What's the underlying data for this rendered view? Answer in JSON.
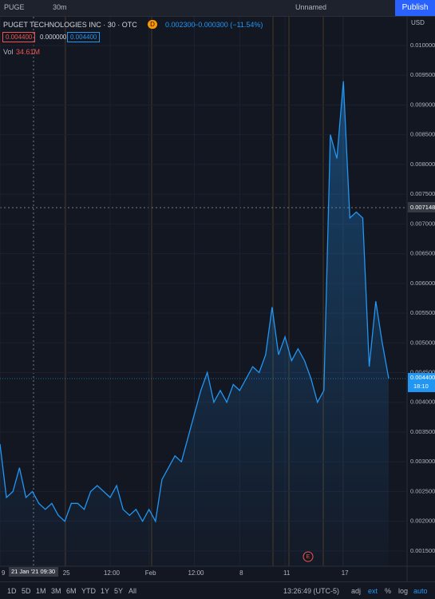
{
  "toolbar": {
    "symbol": "PUGE",
    "interval": "30m",
    "layout": "Unnamed",
    "publish": "Publish"
  },
  "legend": {
    "name": "PUGET TECHNOLOGIES INC · 30 · OTC",
    "flag": "D",
    "last": "0.002300",
    "change": "−0.000300 (−11.54%)",
    "boxes": [
      "0.004400",
      "0.000000",
      "0.004400"
    ],
    "vol_label": "Vol",
    "vol_value": "34.61M"
  },
  "bottom": {
    "ranges": [
      "1D",
      "5D",
      "1M",
      "3M",
      "6M",
      "YTD",
      "1Y",
      "5Y",
      "All"
    ],
    "clock": "13:26:49 (UTC-5)",
    "options": [
      "adj",
      "ext",
      "%",
      "log",
      "auto"
    ]
  },
  "chart_data": {
    "type": "area",
    "currency": "USD",
    "color": "#2196f3",
    "values": [
      0.0033,
      0.0024,
      0.0025,
      0.0029,
      0.0024,
      0.0025,
      0.0023,
      0.0022,
      0.0023,
      0.0021,
      0.002,
      0.0023,
      0.0023,
      0.0022,
      0.0025,
      0.0026,
      0.0025,
      0.0024,
      0.0026,
      0.0022,
      0.0021,
      0.0022,
      0.002,
      0.0022,
      0.002,
      0.0027,
      0.0029,
      0.0031,
      0.003,
      0.0034,
      0.0038,
      0.0042,
      0.0045,
      0.004,
      0.0042,
      0.004,
      0.0043,
      0.0042,
      0.0044,
      0.0046,
      0.0045,
      0.0048,
      0.0056,
      0.0048,
      0.0051,
      0.0047,
      0.0049,
      0.0047,
      0.0044,
      0.004,
      0.0042,
      0.0085,
      0.0081,
      0.0094,
      0.0071,
      0.0072,
      0.0071,
      0.0046,
      0.0057,
      0.005,
      0.0044
    ],
    "xlim": [
      0,
      60
    ],
    "xticks": [
      {
        "value": 0,
        "label": "9"
      },
      {
        "value": 10,
        "label": "25"
      },
      {
        "value": 17,
        "label": "12:00"
      },
      {
        "value": 23,
        "label": "Feb"
      },
      {
        "value": 30,
        "label": "12:00"
      },
      {
        "value": 37,
        "label": "8"
      },
      {
        "value": 44,
        "label": "11"
      },
      {
        "value": 53,
        "label": "17"
      }
    ],
    "crosshair_time": "21 Jan '21  09:30",
    "crosshair_price": "0.007148",
    "last_price_label": "0.004400",
    "countdown": "18:10",
    "event_marker": "E",
    "ylim": [
      0.00123,
      0.01047
    ],
    "yticks": [
      {
        "value": 0.0015,
        "label": "0.001500"
      },
      {
        "value": 0.002,
        "label": "0.002000"
      },
      {
        "value": 0.0025,
        "label": "0.002500"
      },
      {
        "value": 0.003,
        "label": "0.003000"
      },
      {
        "value": 0.0035,
        "label": "0.003500"
      },
      {
        "value": 0.004,
        "label": "0.004000"
      },
      {
        "value": 0.0045,
        "label": "0.004500"
      },
      {
        "value": 0.005,
        "label": "0.005000"
      },
      {
        "value": 0.0055,
        "label": "0.005500"
      },
      {
        "value": 0.006,
        "label": "0.006000"
      },
      {
        "value": 0.0065,
        "label": "0.006500"
      },
      {
        "value": 0.007,
        "label": "0.007000"
      },
      {
        "value": 0.0075,
        "label": "0.007500"
      },
      {
        "value": 0.008,
        "label": "0.008000"
      },
      {
        "value": 0.0085,
        "label": "0.008500"
      },
      {
        "value": 0.009,
        "label": "0.009000"
      },
      {
        "value": 0.0095,
        "label": "0.009500"
      },
      {
        "value": 0.01,
        "label": "0.010000"
      }
    ],
    "grid": true
  }
}
